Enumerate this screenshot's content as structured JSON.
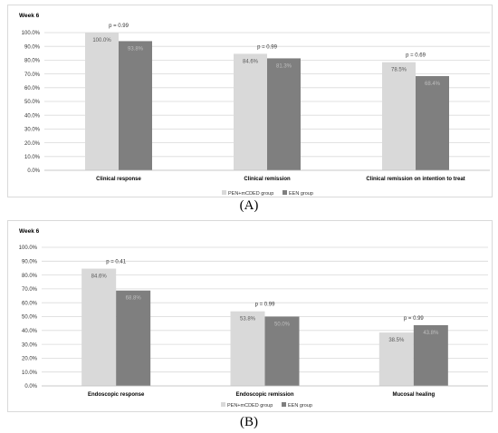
{
  "colors": {
    "pen": "#d9d9d9",
    "een": "#7f7f7f",
    "grid": "#d9d9d9",
    "text": "#333333",
    "label_dark": "#595959",
    "label_light": "#bfbfbf"
  },
  "chart_data": [
    {
      "type": "bar",
      "panel": "A",
      "title": "Week 6",
      "caption": "(A)",
      "categories": [
        "Clinical response",
        "Clinical remission",
        "Clinical remission on intention to treat"
      ],
      "series": [
        {
          "name": "PEN+mCDED group",
          "values": [
            100.0,
            84.6,
            78.5
          ],
          "labels": [
            "100.0%",
            "84.6%",
            "78.5%"
          ]
        },
        {
          "name": "EEN group",
          "values": [
            93.8,
            81.3,
            68.4
          ],
          "labels": [
            "93.8%",
            "81.3%",
            "68.4%"
          ]
        }
      ],
      "p_values": [
        "p = 0.99",
        "p = 0.99",
        "p = 0.69"
      ],
      "ylim": [
        0,
        100
      ],
      "yticks": [
        "0.0%",
        "10.0%",
        "20.0%",
        "30.0%",
        "40.0%",
        "50.0%",
        "60.0%",
        "70.0%",
        "80.0%",
        "90.0%",
        "100.0%"
      ],
      "grid": true,
      "legend": "bottom-center"
    },
    {
      "type": "bar",
      "panel": "B",
      "title": "Week 6",
      "caption": "(B)",
      "categories": [
        "Endoscopic response",
        "Endoscopic remission",
        "Mucosal healing"
      ],
      "series": [
        {
          "name": "PEN+mCDED group",
          "values": [
            84.6,
            53.8,
            38.5
          ],
          "labels": [
            "84.6%",
            "53.8%",
            "38.5%"
          ]
        },
        {
          "name": "EEN group",
          "values": [
            68.8,
            50.0,
            43.8
          ],
          "labels": [
            "68.8%",
            "50.0%",
            "43.8%"
          ]
        }
      ],
      "p_values": [
        "p = 0.41",
        "p = 0.99",
        "p = 0.99"
      ],
      "ylim": [
        0,
        100
      ],
      "yticks": [
        "0.0%",
        "10.0%",
        "20.0%",
        "30.0%",
        "40.0%",
        "50.0%",
        "60.0%",
        "70.0%",
        "80.0%",
        "90.0%",
        "100.0%"
      ],
      "grid": true,
      "legend": "bottom-center"
    }
  ]
}
